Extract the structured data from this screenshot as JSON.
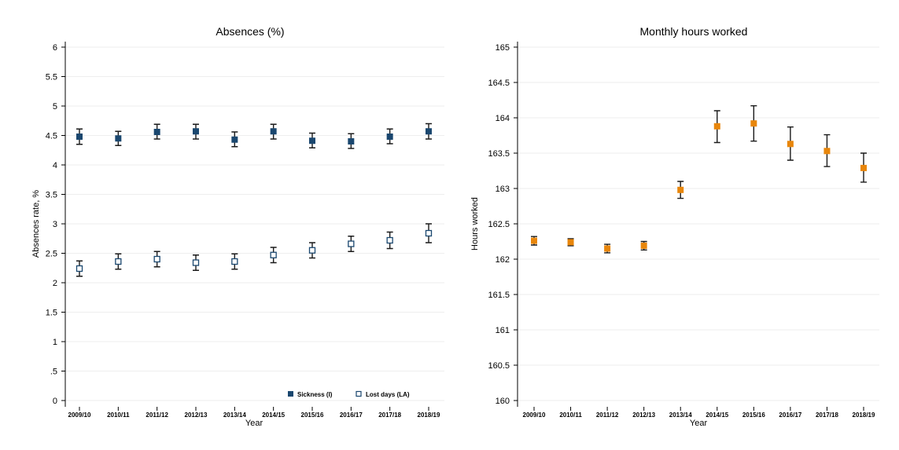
{
  "chart_data": [
    {
      "type": "scatter",
      "title": "Absences (%)",
      "xlabel": "Year",
      "ylabel": "Absences rate, %",
      "ylim": [
        0,
        6
      ],
      "yticks": [
        "0",
        ".5",
        "1",
        "1.5",
        "2",
        "2.5",
        "3",
        "3.5",
        "4",
        "4.5",
        "5",
        "5.5",
        "6"
      ],
      "categories": [
        "2009/10",
        "2010/11",
        "2011/12",
        "2012/13",
        "2013/14",
        "2014/15",
        "2015/16",
        "2016/17",
        "2017/18",
        "2018/19"
      ],
      "grid": true,
      "legend_position": "bottom-right",
      "series": [
        {
          "name": "Sickness (I)",
          "marker": "filled-square",
          "color": "#1a476f",
          "values": [
            4.48,
            4.45,
            4.56,
            4.57,
            4.43,
            4.57,
            4.41,
            4.4,
            4.48,
            4.57
          ],
          "ci_low": [
            4.35,
            4.33,
            4.44,
            4.44,
            4.31,
            4.44,
            4.29,
            4.28,
            4.36,
            4.44
          ],
          "ci_high": [
            4.61,
            4.57,
            4.69,
            4.69,
            4.56,
            4.69,
            4.54,
            4.53,
            4.61,
            4.7
          ]
        },
        {
          "name": "Lost days (LA)",
          "marker": "hollow-square",
          "color": "#1a476f",
          "values": [
            2.24,
            2.36,
            2.4,
            2.34,
            2.36,
            2.47,
            2.55,
            2.66,
            2.72,
            2.84
          ],
          "ci_low": [
            2.11,
            2.23,
            2.27,
            2.21,
            2.23,
            2.34,
            2.42,
            2.53,
            2.58,
            2.68
          ],
          "ci_high": [
            2.37,
            2.49,
            2.53,
            2.47,
            2.49,
            2.6,
            2.68,
            2.79,
            2.86,
            3.0
          ]
        }
      ]
    },
    {
      "type": "scatter",
      "title": "Monthly hours worked",
      "xlabel": "Year",
      "ylabel": "Hours worked",
      "ylim": [
        160,
        165
      ],
      "yticks": [
        "160",
        "160.5",
        "161",
        "161.5",
        "162",
        "162.5",
        "163",
        "163.5",
        "164",
        "164.5",
        "165"
      ],
      "categories": [
        "2009/10",
        "2010/11",
        "2011/12",
        "2012/13",
        "2013/14",
        "2014/15",
        "2015/16",
        "2016/17",
        "2017/18",
        "2018/19"
      ],
      "grid": true,
      "series": [
        {
          "marker": "filled-square",
          "color": "#e8860b",
          "values": [
            162.26,
            162.24,
            162.15,
            162.19,
            162.98,
            163.88,
            163.92,
            163.63,
            163.53,
            163.29
          ],
          "ci_low": [
            162.2,
            162.19,
            162.09,
            162.13,
            162.86,
            163.65,
            163.67,
            163.4,
            163.31,
            163.09
          ],
          "ci_high": [
            162.32,
            162.29,
            162.21,
            162.25,
            163.1,
            164.1,
            164.17,
            163.87,
            163.76,
            163.5
          ]
        }
      ]
    }
  ]
}
